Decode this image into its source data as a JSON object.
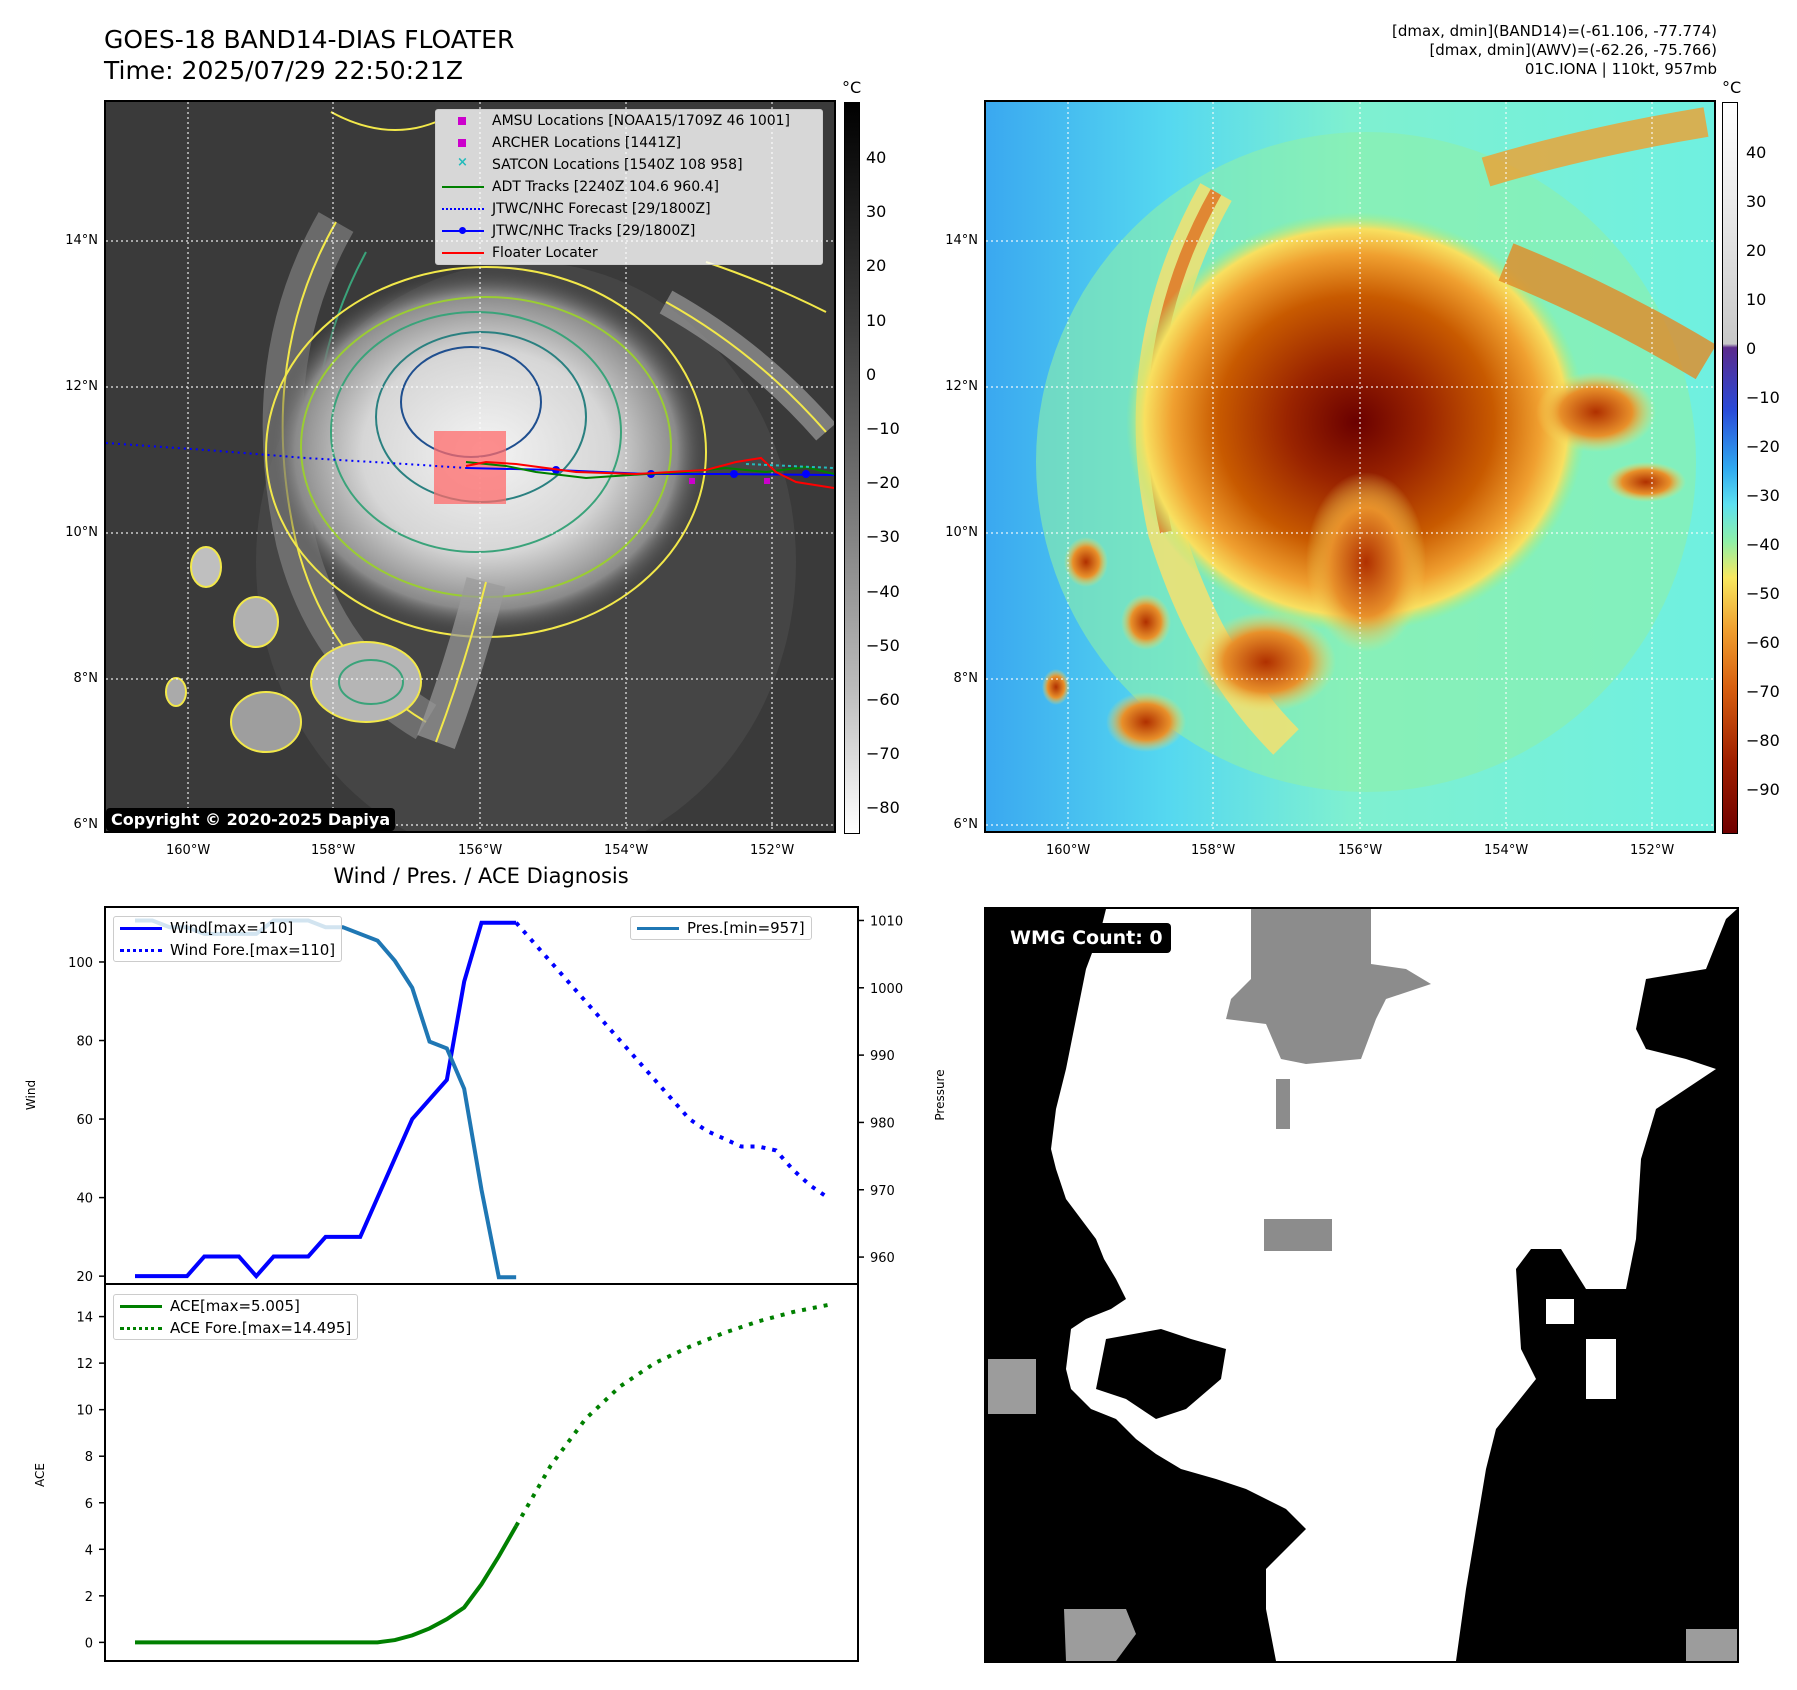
{
  "header": {
    "title_line1": "GOES-18 BAND14-DIAS FLOATER",
    "title_line2": "Time: 2025/07/29 22:50:21Z",
    "right_line1": "[dmax, dmin](BAND14)=(-61.106, -77.774)",
    "right_line2": "[dmax, dmin](AWV)=(-62.26, -75.766)",
    "right_line3": "01C.IONA | 110kt, 957mb"
  },
  "ir_panel": {
    "unit": "°C",
    "lat_labels": [
      "14°N",
      "12°N",
      "10°N",
      "8°N",
      "6°N"
    ],
    "lon_labels": [
      "160°W",
      "158°W",
      "156°W",
      "154°W",
      "152°W"
    ],
    "colorbar_ticks": [
      "40",
      "30",
      "20",
      "10",
      "0",
      "−10",
      "−20",
      "−30",
      "−40",
      "−50",
      "−60",
      "−70",
      "−80"
    ],
    "copyright": "Copyright © 2020-2025 Dapiya",
    "legend": [
      {
        "label": "AMSU Locations [NOAA15/1709Z 46 1001]",
        "color": "#cc00cc",
        "style": "square"
      },
      {
        "label": "ARCHER Locations [1441Z]",
        "color": "#cc00cc",
        "style": "square"
      },
      {
        "label": "SATCON Locations [1540Z 108 958]",
        "color": "#22bbbb",
        "style": "x"
      },
      {
        "label": "ADT Tracks [2240Z 104.6 960.4]",
        "color": "#008000",
        "style": "line"
      },
      {
        "label": "JTWC/NHC Forecast [29/1800Z]",
        "color": "#0000ff",
        "style": "dotted"
      },
      {
        "label": "JTWC/NHC Tracks [29/1800Z]",
        "color": "#0000ff",
        "style": "linedot"
      },
      {
        "label": "Floater Locater",
        "color": "#ff0000",
        "style": "line"
      }
    ]
  },
  "awv_panel": {
    "unit": "°C",
    "lat_labels": [
      "14°N",
      "12°N",
      "10°N",
      "8°N",
      "6°N"
    ],
    "lon_labels": [
      "160°W",
      "158°W",
      "156°W",
      "154°W",
      "152°W"
    ],
    "colorbar_ticks": [
      "40",
      "30",
      "20",
      "10",
      "0",
      "−10",
      "−20",
      "−30",
      "−40",
      "−50",
      "−60",
      "−70",
      "−80",
      "−90"
    ]
  },
  "wmg_panel": {
    "label": "WMG Count: 0"
  },
  "chart_data": [
    {
      "type": "line",
      "title": "Wind / Pres. / ACE Diagnosis",
      "ylabel": "Wind",
      "y2label": "Pressure",
      "ylim": [
        18,
        114
      ],
      "y2lim": [
        956,
        1012
      ],
      "yticks": [
        "100",
        "80",
        "60",
        "40",
        "20"
      ],
      "y2ticks": [
        "1010",
        "1000",
        "990",
        "980",
        "970",
        "960"
      ],
      "series": [
        {
          "name": "Wind[max=110]",
          "color": "#0000ff",
          "style": "solid",
          "axis": "left",
          "x": [
            0,
            1,
            2,
            3,
            4,
            5,
            6,
            7,
            8,
            9,
            10,
            11,
            12,
            13,
            14,
            15,
            16,
            17,
            18,
            19,
            20,
            21,
            22
          ],
          "values": [
            20,
            20,
            20,
            20,
            25,
            25,
            25,
            20,
            25,
            25,
            25,
            30,
            30,
            30,
            40,
            50,
            60,
            65,
            70,
            95,
            110,
            110,
            110
          ]
        },
        {
          "name": "Wind Fore.[max=110]",
          "color": "#0000ff",
          "style": "dotted",
          "axis": "left",
          "x": [
            22,
            23,
            24,
            25,
            26,
            27,
            28,
            29,
            30,
            31,
            32,
            33,
            34,
            35,
            36,
            37,
            38,
            39,
            40
          ],
          "values": [
            110,
            105,
            100,
            95,
            90,
            85,
            80,
            75,
            70,
            65,
            60,
            57,
            55,
            53,
            53,
            52,
            47,
            43,
            40
          ]
        },
        {
          "name": "Pres.[min=957]",
          "color": "#1f77b4",
          "style": "solid",
          "axis": "right",
          "x": [
            0,
            1,
            2,
            3,
            4,
            5,
            6,
            7,
            8,
            9,
            10,
            11,
            12,
            13,
            14,
            15,
            16,
            17,
            18,
            19,
            20,
            21,
            22
          ],
          "values": [
            1010,
            1010,
            1009,
            1009,
            1008,
            1008,
            1008,
            1008,
            1010,
            1010,
            1010,
            1009,
            1009,
            1008,
            1007,
            1004,
            1000,
            992,
            991,
            985,
            970,
            957,
            957
          ]
        }
      ]
    },
    {
      "type": "line",
      "ylabel": "ACE",
      "ylim": [
        -0.8,
        15.4
      ],
      "yticks": [
        "14",
        "12",
        "10",
        "8",
        "6",
        "4",
        "2",
        "0"
      ],
      "series": [
        {
          "name": "ACE[max=5.005]",
          "color": "#008000",
          "style": "solid",
          "x": [
            0,
            2,
            4,
            6,
            8,
            10,
            12,
            14,
            15,
            16,
            17,
            18,
            19,
            20,
            21,
            22
          ],
          "values": [
            0,
            0,
            0,
            0,
            0,
            0,
            0,
            0,
            0.1,
            0.3,
            0.6,
            1.0,
            1.5,
            2.5,
            3.7,
            5.0
          ]
        },
        {
          "name": "ACE Fore.[max=14.495]",
          "color": "#008000",
          "style": "dotted",
          "x": [
            22,
            24,
            26,
            28,
            30,
            32,
            34,
            36,
            38,
            40
          ],
          "values": [
            5.0,
            7.6,
            9.6,
            11.0,
            12.0,
            12.7,
            13.3,
            13.8,
            14.2,
            14.5
          ]
        }
      ]
    }
  ]
}
